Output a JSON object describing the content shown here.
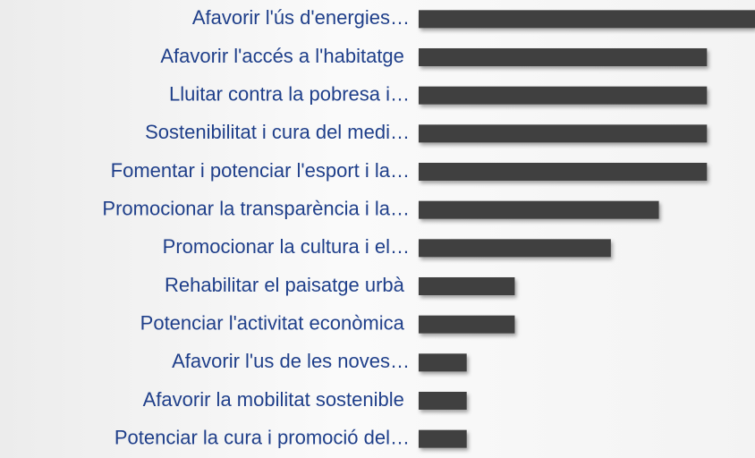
{
  "chart_data": {
    "type": "barh",
    "categories": [
      "Afavorir l'ús d'energies…",
      "Afavorir l'accés a l'habitatge ",
      "Lluitar contra la pobresa i…",
      "Sostenibilitat i cura del medi…",
      "Fomentar i potenciar l'esport i la…",
      "Promocionar la transparència i la…",
      "Promocionar la cultura i el…",
      "Rehabilitar el paisatge urbà ",
      "Potenciar l'activitat econòmica ",
      "Afavorir l'us de les noves…",
      "Afavorir la mobilitat sostenible ",
      "Potenciar la cura i promoció del…"
    ],
    "values": [
      7,
      6,
      6,
      6,
      6,
      5,
      4,
      2,
      2,
      1,
      1,
      1
    ],
    "color": "#404040",
    "xlim": [
      0,
      7
    ]
  }
}
